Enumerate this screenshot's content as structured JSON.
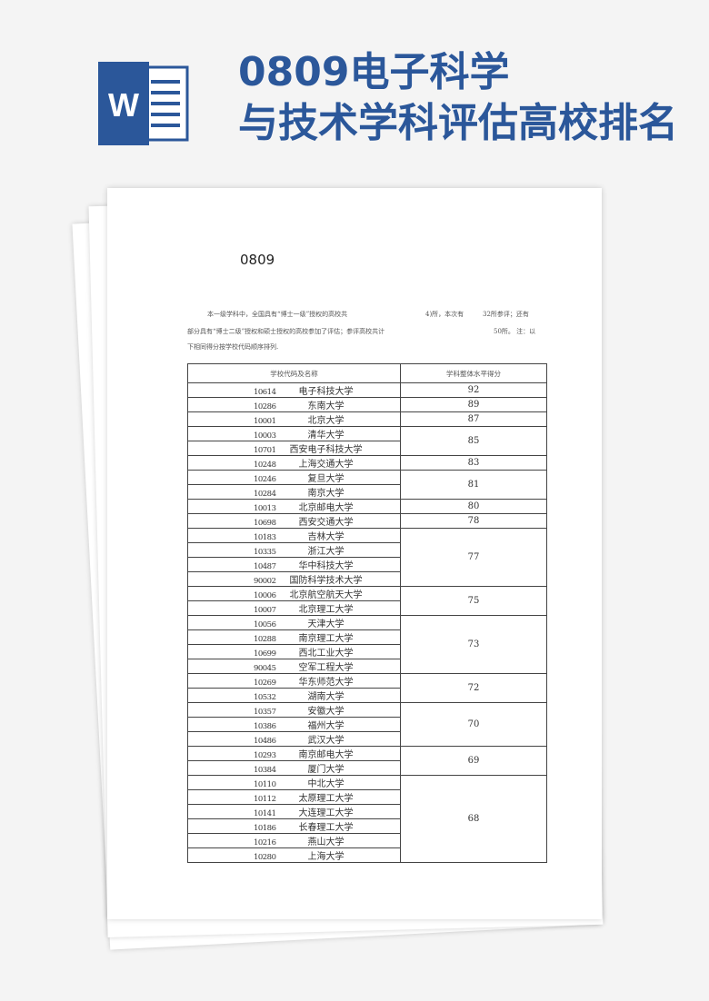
{
  "title": {
    "line1": "0809电子科学",
    "line2": "与技术学科评估高校排名"
  },
  "page": {
    "heading": "0809",
    "intro": [
      "本一级学科中，全国具有“博士一级”授权的高校共",
      "4)所，本次有",
      "32所参评；还有",
      "部分具有“博士二级”授权和硕士授权的高校参加了评估；参评高校共计",
      "50所。 注：以",
      "下相同得分按学校代码顺序排列."
    ],
    "table": {
      "headers": [
        "学校代码及名称",
        "学科整体水平得分"
      ],
      "groups": [
        {
          "score": "92",
          "rows": [
            [
              "10614",
              "电子科技大学"
            ]
          ]
        },
        {
          "score": "89",
          "rows": [
            [
              "10286",
              "东南大学"
            ]
          ]
        },
        {
          "score": "87",
          "rows": [
            [
              "10001",
              "北京大学"
            ]
          ]
        },
        {
          "score": "85",
          "rows": [
            [
              "10003",
              "清华大学"
            ],
            [
              "10701",
              "西安电子科技大学"
            ]
          ]
        },
        {
          "score": "83",
          "rows": [
            [
              "10248",
              "上海交通大学"
            ]
          ]
        },
        {
          "score": "81",
          "rows": [
            [
              "10246",
              "复旦大学"
            ],
            [
              "10284",
              "南京大学"
            ]
          ]
        },
        {
          "score": "80",
          "rows": [
            [
              "10013",
              "北京邮电大学"
            ]
          ]
        },
        {
          "score": "78",
          "rows": [
            [
              "10698",
              "西安交通大学"
            ]
          ]
        },
        {
          "score": "77",
          "rows": [
            [
              "10183",
              "吉林大学"
            ],
            [
              "10335",
              "浙江大学"
            ],
            [
              "10487",
              "华中科技大学"
            ],
            [
              "90002",
              "国防科学技术大学"
            ]
          ]
        },
        {
          "score": "75",
          "rows": [
            [
              "10006",
              "北京航空航天大学"
            ],
            [
              "10007",
              "北京理工大学"
            ]
          ]
        },
        {
          "score": "73",
          "rows": [
            [
              "10056",
              "天津大学"
            ],
            [
              "10288",
              "南京理工大学"
            ],
            [
              "10699",
              "西北工业大学"
            ],
            [
              "90045",
              "空军工程大学"
            ]
          ]
        },
        {
          "score": "72",
          "rows": [
            [
              "10269",
              "华东师范大学"
            ],
            [
              "10532",
              "湖南大学"
            ]
          ]
        },
        {
          "score": "70",
          "rows": [
            [
              "10357",
              "安徽大学"
            ],
            [
              "10386",
              "福州大学"
            ],
            [
              "10486",
              "武汉大学"
            ]
          ]
        },
        {
          "score": "69",
          "rows": [
            [
              "10293",
              "南京邮电大学"
            ],
            [
              "10384",
              "厦门大学"
            ]
          ]
        },
        {
          "score": "68",
          "rows": [
            [
              "10110",
              "中北大学"
            ],
            [
              "10112",
              "太原理工大学"
            ],
            [
              "10141",
              "大连理工大学"
            ],
            [
              "10186",
              "长春理工大学"
            ],
            [
              "10216",
              "燕山大学"
            ],
            [
              "10280",
              "上海大学"
            ]
          ]
        }
      ]
    }
  }
}
